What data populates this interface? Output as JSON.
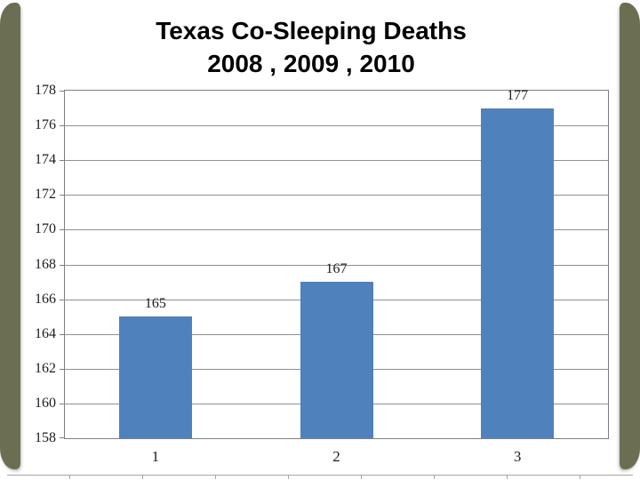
{
  "slide": {
    "title_line1": "Texas Co-Sleeping Deaths",
    "title_line2": "2008 , 2009 , 2010"
  },
  "chart_data": {
    "type": "bar",
    "title": "Texas Co-Sleeping Deaths 2008 , 2009 , 2010",
    "categories": [
      "1",
      "2",
      "3"
    ],
    "values": [
      165,
      167,
      177
    ],
    "data_labels": [
      "165",
      "167",
      "177"
    ],
    "y_ticks": [
      158,
      160,
      162,
      164,
      166,
      168,
      170,
      172,
      174,
      176,
      178
    ],
    "ylim": [
      158,
      178
    ],
    "xlabel": "",
    "ylabel": "",
    "grid": true,
    "legend_position": "none",
    "bar_color": "#4f81bd"
  },
  "colors": {
    "accent_edge": "#6c6e53",
    "bar": "#4f81bd",
    "gridline": "#909090",
    "axis_border": "#7f7f7f",
    "bottom_rule": "#a6a6a6",
    "text": "#000000"
  }
}
